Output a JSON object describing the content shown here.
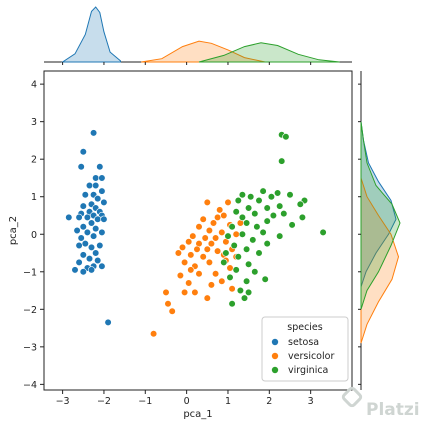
{
  "chart_data": {
    "type": "scatter",
    "xlabel": "pca_1",
    "ylabel": "pca_2",
    "xlim": [
      -3.45,
      4.0
    ],
    "ylim": [
      -4.15,
      4.35
    ],
    "xticks": [
      -3,
      -2,
      -1,
      0,
      1,
      2,
      3
    ],
    "yticks": [
      -4,
      -3,
      -2,
      -1,
      0,
      1,
      2,
      3,
      4
    ],
    "legend_title": "species",
    "legend_position": "lower-right",
    "marginal_plots": "kde",
    "series": [
      {
        "name": "setosa",
        "color": "#1f77b4",
        "points": [
          [
            -2.25,
            2.7
          ],
          [
            -2.5,
            2.2
          ],
          [
            -2.1,
            1.8
          ],
          [
            -2.55,
            1.8
          ],
          [
            -2.2,
            1.5
          ],
          [
            -2.05,
            1.5
          ],
          [
            -2.2,
            1.3
          ],
          [
            -2.35,
            1.3
          ],
          [
            -2.05,
            1.15
          ],
          [
            -2.25,
            1.05
          ],
          [
            -2.45,
            1.05
          ],
          [
            -2.15,
            0.95
          ],
          [
            -2.0,
            0.85
          ],
          [
            -2.3,
            0.8
          ],
          [
            -2.5,
            0.75
          ],
          [
            -2.2,
            0.7
          ],
          [
            -2.1,
            0.6
          ],
          [
            -2.35,
            0.6
          ],
          [
            -2.55,
            0.55
          ],
          [
            -2.25,
            0.5
          ],
          [
            -2.05,
            0.5
          ],
          [
            -2.6,
            0.45
          ],
          [
            -2.85,
            0.45
          ],
          [
            -2.4,
            0.45
          ],
          [
            -2.15,
            0.4
          ],
          [
            -2.0,
            0.4
          ],
          [
            -2.3,
            0.3
          ],
          [
            -2.5,
            0.2
          ],
          [
            -2.2,
            0.15
          ],
          [
            -2.65,
            0.1
          ],
          [
            -2.4,
            0.05
          ],
          [
            -2.05,
            0.05
          ],
          [
            -2.25,
            -0.05
          ],
          [
            -2.55,
            -0.1
          ],
          [
            -2.45,
            -0.25
          ],
          [
            -2.3,
            -0.35
          ],
          [
            -2.1,
            -0.3
          ],
          [
            -2.6,
            -0.3
          ],
          [
            -2.2,
            -0.5
          ],
          [
            -2.5,
            -0.55
          ],
          [
            -2.35,
            -0.65
          ],
          [
            -2.6,
            -0.75
          ],
          [
            -2.15,
            -0.7
          ],
          [
            -2.25,
            -0.85
          ],
          [
            -2.4,
            -0.9
          ],
          [
            -2.05,
            -0.85
          ],
          [
            -2.7,
            -0.95
          ],
          [
            -2.5,
            -1.0
          ],
          [
            -2.3,
            -0.95
          ],
          [
            -1.9,
            -2.35
          ]
        ]
      },
      {
        "name": "versicolor",
        "color": "#ff7f0e",
        "points": [
          [
            0.5,
            0.85
          ],
          [
            1.0,
            0.85
          ],
          [
            0.8,
            0.65
          ],
          [
            0.75,
            0.45
          ],
          [
            0.9,
            0.5
          ],
          [
            0.4,
            0.4
          ],
          [
            0.65,
            0.3
          ],
          [
            1.05,
            0.25
          ],
          [
            0.3,
            0.2
          ],
          [
            0.55,
            0.1
          ],
          [
            1.3,
            0.3
          ],
          [
            0.85,
            0.05
          ],
          [
            0.15,
            -0.05
          ],
          [
            0.45,
            -0.1
          ],
          [
            0.7,
            -0.1
          ],
          [
            1.2,
            0.0
          ],
          [
            0.05,
            -0.2
          ],
          [
            0.3,
            -0.25
          ],
          [
            0.95,
            -0.2
          ],
          [
            0.6,
            -0.25
          ],
          [
            -0.1,
            -0.35
          ],
          [
            0.25,
            -0.4
          ],
          [
            0.5,
            -0.4
          ],
          [
            0.75,
            -0.45
          ],
          [
            1.1,
            -0.4
          ],
          [
            0.1,
            -0.55
          ],
          [
            -0.2,
            -0.5
          ],
          [
            0.4,
            -0.6
          ],
          [
            0.9,
            -0.55
          ],
          [
            1.2,
            -0.6
          ],
          [
            -0.05,
            -0.75
          ],
          [
            0.2,
            -0.85
          ],
          [
            0.55,
            -0.75
          ],
          [
            0.95,
            -0.7
          ],
          [
            0.1,
            -0.95
          ],
          [
            0.3,
            -1.05
          ],
          [
            -0.15,
            -1.1
          ],
          [
            0.7,
            -1.05
          ],
          [
            1.05,
            -0.9
          ],
          [
            0.05,
            -1.3
          ],
          [
            0.6,
            -1.35
          ],
          [
            0.85,
            -1.25
          ],
          [
            1.1,
            -1.45
          ],
          [
            -0.05,
            -1.55
          ],
          [
            0.2,
            -1.55
          ],
          [
            0.5,
            -1.7
          ],
          [
            -0.5,
            -1.55
          ],
          [
            -0.45,
            -1.85
          ],
          [
            -0.35,
            -2.05
          ],
          [
            -0.8,
            -2.65
          ]
        ]
      },
      {
        "name": "virginica",
        "color": "#2ca02c",
        "points": [
          [
            2.3,
            2.65
          ],
          [
            2.4,
            2.6
          ],
          [
            2.3,
            1.95
          ],
          [
            1.85,
            1.15
          ],
          [
            2.2,
            1.1
          ],
          [
            2.5,
            1.05
          ],
          [
            1.35,
            1.05
          ],
          [
            1.55,
            1.0
          ],
          [
            2.05,
            1.0
          ],
          [
            1.25,
            0.9
          ],
          [
            1.75,
            0.9
          ],
          [
            2.85,
            0.9
          ],
          [
            2.75,
            0.8
          ],
          [
            2.25,
            0.75
          ],
          [
            1.5,
            0.7
          ],
          [
            1.95,
            0.7
          ],
          [
            1.2,
            0.6
          ],
          [
            2.35,
            0.55
          ],
          [
            1.65,
            0.55
          ],
          [
            2.1,
            0.5
          ],
          [
            1.35,
            0.45
          ],
          [
            2.8,
            0.45
          ],
          [
            1.95,
            0.35
          ],
          [
            1.45,
            0.3
          ],
          [
            1.1,
            0.2
          ],
          [
            2.55,
            0.25
          ],
          [
            1.7,
            0.2
          ],
          [
            3.3,
            0.05
          ],
          [
            1.85,
            0.05
          ],
          [
            1.35,
            0.0
          ],
          [
            2.25,
            -0.05
          ],
          [
            1.0,
            -0.05
          ],
          [
            1.6,
            -0.15
          ],
          [
            1.15,
            -0.3
          ],
          [
            1.95,
            -0.25
          ],
          [
            1.45,
            -0.4
          ],
          [
            0.95,
            -0.5
          ],
          [
            1.75,
            -0.5
          ],
          [
            1.25,
            -0.6
          ],
          [
            0.9,
            -0.75
          ],
          [
            1.5,
            -0.8
          ],
          [
            1.2,
            -0.95
          ],
          [
            1.65,
            -1.0
          ],
          [
            1.05,
            -1.15
          ],
          [
            1.9,
            -1.2
          ],
          [
            1.45,
            -1.25
          ],
          [
            1.3,
            -1.5
          ],
          [
            1.5,
            -1.55
          ],
          [
            1.4,
            -1.7
          ],
          [
            1.1,
            -1.85
          ]
        ]
      }
    ],
    "marginal_x": [
      {
        "name": "setosa",
        "color": "#1f77b4",
        "density": [
          [
            -3.0,
            0.0
          ],
          [
            -2.7,
            0.15
          ],
          [
            -2.45,
            0.5
          ],
          [
            -2.3,
            0.92
          ],
          [
            -2.2,
            1.0
          ],
          [
            -2.1,
            0.9
          ],
          [
            -2.0,
            0.55
          ],
          [
            -1.85,
            0.18
          ],
          [
            -1.6,
            0.02
          ]
        ]
      },
      {
        "name": "versicolor",
        "color": "#ff7f0e",
        "density": [
          [
            -1.1,
            0.0
          ],
          [
            -0.6,
            0.06
          ],
          [
            -0.1,
            0.28
          ],
          [
            0.3,
            0.38
          ],
          [
            0.6,
            0.34
          ],
          [
            1.0,
            0.22
          ],
          [
            1.4,
            0.08
          ],
          [
            1.9,
            0.0
          ]
        ]
      },
      {
        "name": "virginica",
        "color": "#2ca02c",
        "density": [
          [
            0.3,
            0.0
          ],
          [
            0.9,
            0.12
          ],
          [
            1.4,
            0.28
          ],
          [
            1.8,
            0.35
          ],
          [
            2.2,
            0.3
          ],
          [
            2.7,
            0.14
          ],
          [
            3.2,
            0.04
          ],
          [
            3.7,
            0.0
          ]
        ]
      }
    ],
    "marginal_y": [
      {
        "name": "setosa",
        "color": "#1f77b4",
        "density": [
          [
            -1.4,
            0.0
          ],
          [
            -1.0,
            0.1
          ],
          [
            -0.5,
            0.3
          ],
          [
            0.0,
            0.55
          ],
          [
            0.4,
            0.7
          ],
          [
            0.9,
            0.6
          ],
          [
            1.4,
            0.35
          ],
          [
            1.9,
            0.15
          ],
          [
            2.5,
            0.05
          ],
          [
            3.0,
            0.0
          ]
        ]
      },
      {
        "name": "versicolor",
        "color": "#ff7f0e",
        "density": [
          [
            -2.9,
            0.0
          ],
          [
            -2.4,
            0.12
          ],
          [
            -1.8,
            0.35
          ],
          [
            -1.2,
            0.62
          ],
          [
            -0.6,
            0.75
          ],
          [
            0.0,
            0.6
          ],
          [
            0.5,
            0.35
          ],
          [
            1.0,
            0.12
          ],
          [
            1.5,
            0.0
          ]
        ]
      },
      {
        "name": "virginica",
        "color": "#2ca02c",
        "density": [
          [
            -2.0,
            0.0
          ],
          [
            -1.5,
            0.12
          ],
          [
            -1.0,
            0.35
          ],
          [
            -0.3,
            0.6
          ],
          [
            0.3,
            0.78
          ],
          [
            0.8,
            0.62
          ],
          [
            1.3,
            0.3
          ],
          [
            1.9,
            0.12
          ],
          [
            2.5,
            0.05
          ],
          [
            3.0,
            0.0
          ]
        ]
      }
    ]
  },
  "watermark": {
    "text": "Platzi"
  }
}
